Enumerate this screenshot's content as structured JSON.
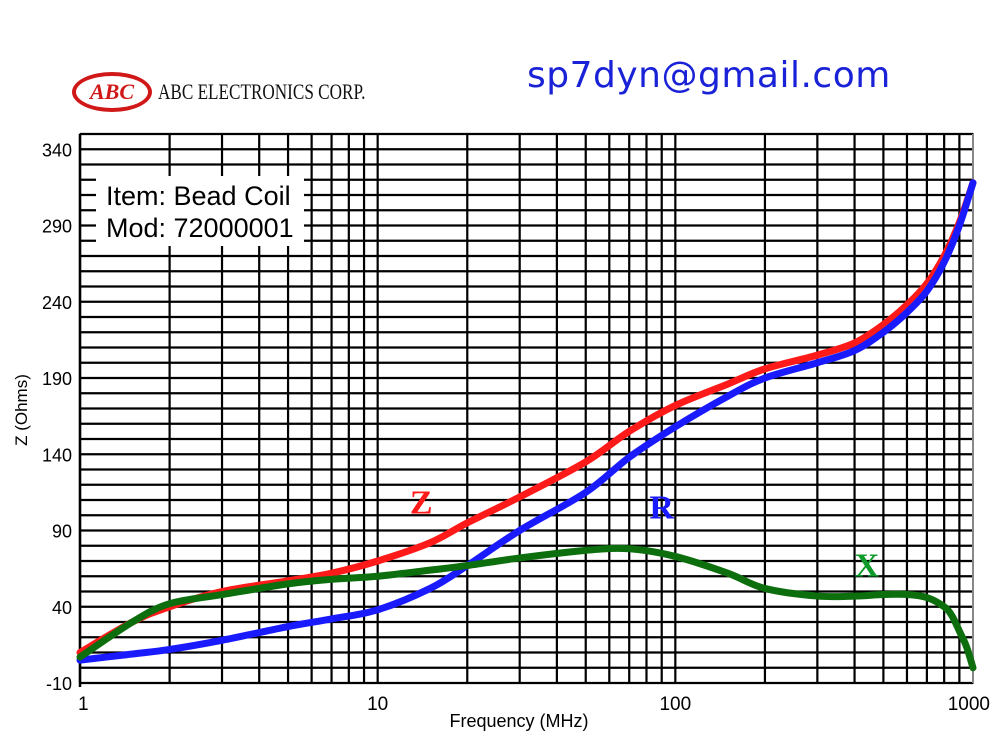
{
  "header": {
    "logo_mark": "ABC",
    "company": "ABC ELECTRONICS CORP.",
    "email": "sp7dyn@gmail.com"
  },
  "info_box": {
    "item": "Item: Bead Coil",
    "mod": "Mod: 72000001"
  },
  "colors": {
    "Z": "#ff1a1a",
    "R": "#1a1aff",
    "X": "#0d6e0d",
    "brand": "#d01818",
    "email": "#1a22d8"
  },
  "chart_data": {
    "type": "line",
    "title": "Item: Bead Coil / Mod: 72000001",
    "xlabel": "Frequency (MHz)",
    "ylabel": "Z (Ohms)",
    "xscale": "log",
    "xlim": [
      1,
      1000
    ],
    "ylim": [
      -10,
      350
    ],
    "x_ticks": [
      "1",
      "10",
      "100",
      "1000"
    ],
    "y_ticks": [
      "-10",
      "40",
      "90",
      "140",
      "190",
      "240",
      "290",
      "340"
    ],
    "grid": true,
    "legend": "inline labels (Z, R, X)",
    "series": [
      {
        "name": "Z",
        "color": "#ff1a1a",
        "x": [
          1,
          1.5,
          2,
          3,
          5,
          7,
          10,
          15,
          20,
          30,
          50,
          70,
          100,
          150,
          200,
          300,
          400,
          500,
          600,
          700,
          800,
          900,
          1000
        ],
        "values": [
          10,
          30,
          40,
          50,
          57,
          62,
          70,
          82,
          95,
          112,
          135,
          155,
          172,
          186,
          196,
          205,
          213,
          225,
          238,
          252,
          270,
          292,
          318
        ]
      },
      {
        "name": "R",
        "color": "#1a1aff",
        "x": [
          1,
          1.5,
          2,
          3,
          5,
          7,
          10,
          15,
          20,
          30,
          50,
          70,
          100,
          150,
          200,
          300,
          400,
          500,
          600,
          700,
          800,
          900,
          1000
        ],
        "values": [
          5,
          9,
          12,
          18,
          27,
          32,
          38,
          52,
          67,
          90,
          115,
          138,
          158,
          178,
          190,
          200,
          208,
          220,
          233,
          247,
          266,
          290,
          318
        ]
      },
      {
        "name": "X",
        "color": "#0d6e0d",
        "x": [
          1,
          1.5,
          2,
          3,
          5,
          7,
          10,
          15,
          20,
          30,
          50,
          70,
          100,
          150,
          200,
          300,
          400,
          500,
          600,
          700,
          800,
          850,
          900,
          950,
          1000
        ],
        "values": [
          7,
          30,
          42,
          48,
          55,
          58,
          60,
          64,
          67,
          72,
          77,
          78,
          73,
          62,
          52,
          47,
          47,
          48,
          48,
          46,
          40,
          34,
          24,
          14,
          0
        ]
      }
    ],
    "annotations": [
      {
        "text": "Z",
        "x": 14,
        "y": 101,
        "color": "#ff1a1a"
      },
      {
        "text": "R",
        "x": 90,
        "y": 98,
        "color": "#1a1aff"
      },
      {
        "text": "X",
        "x": 440,
        "y": 60,
        "color": "#0d9a2a"
      }
    ]
  }
}
